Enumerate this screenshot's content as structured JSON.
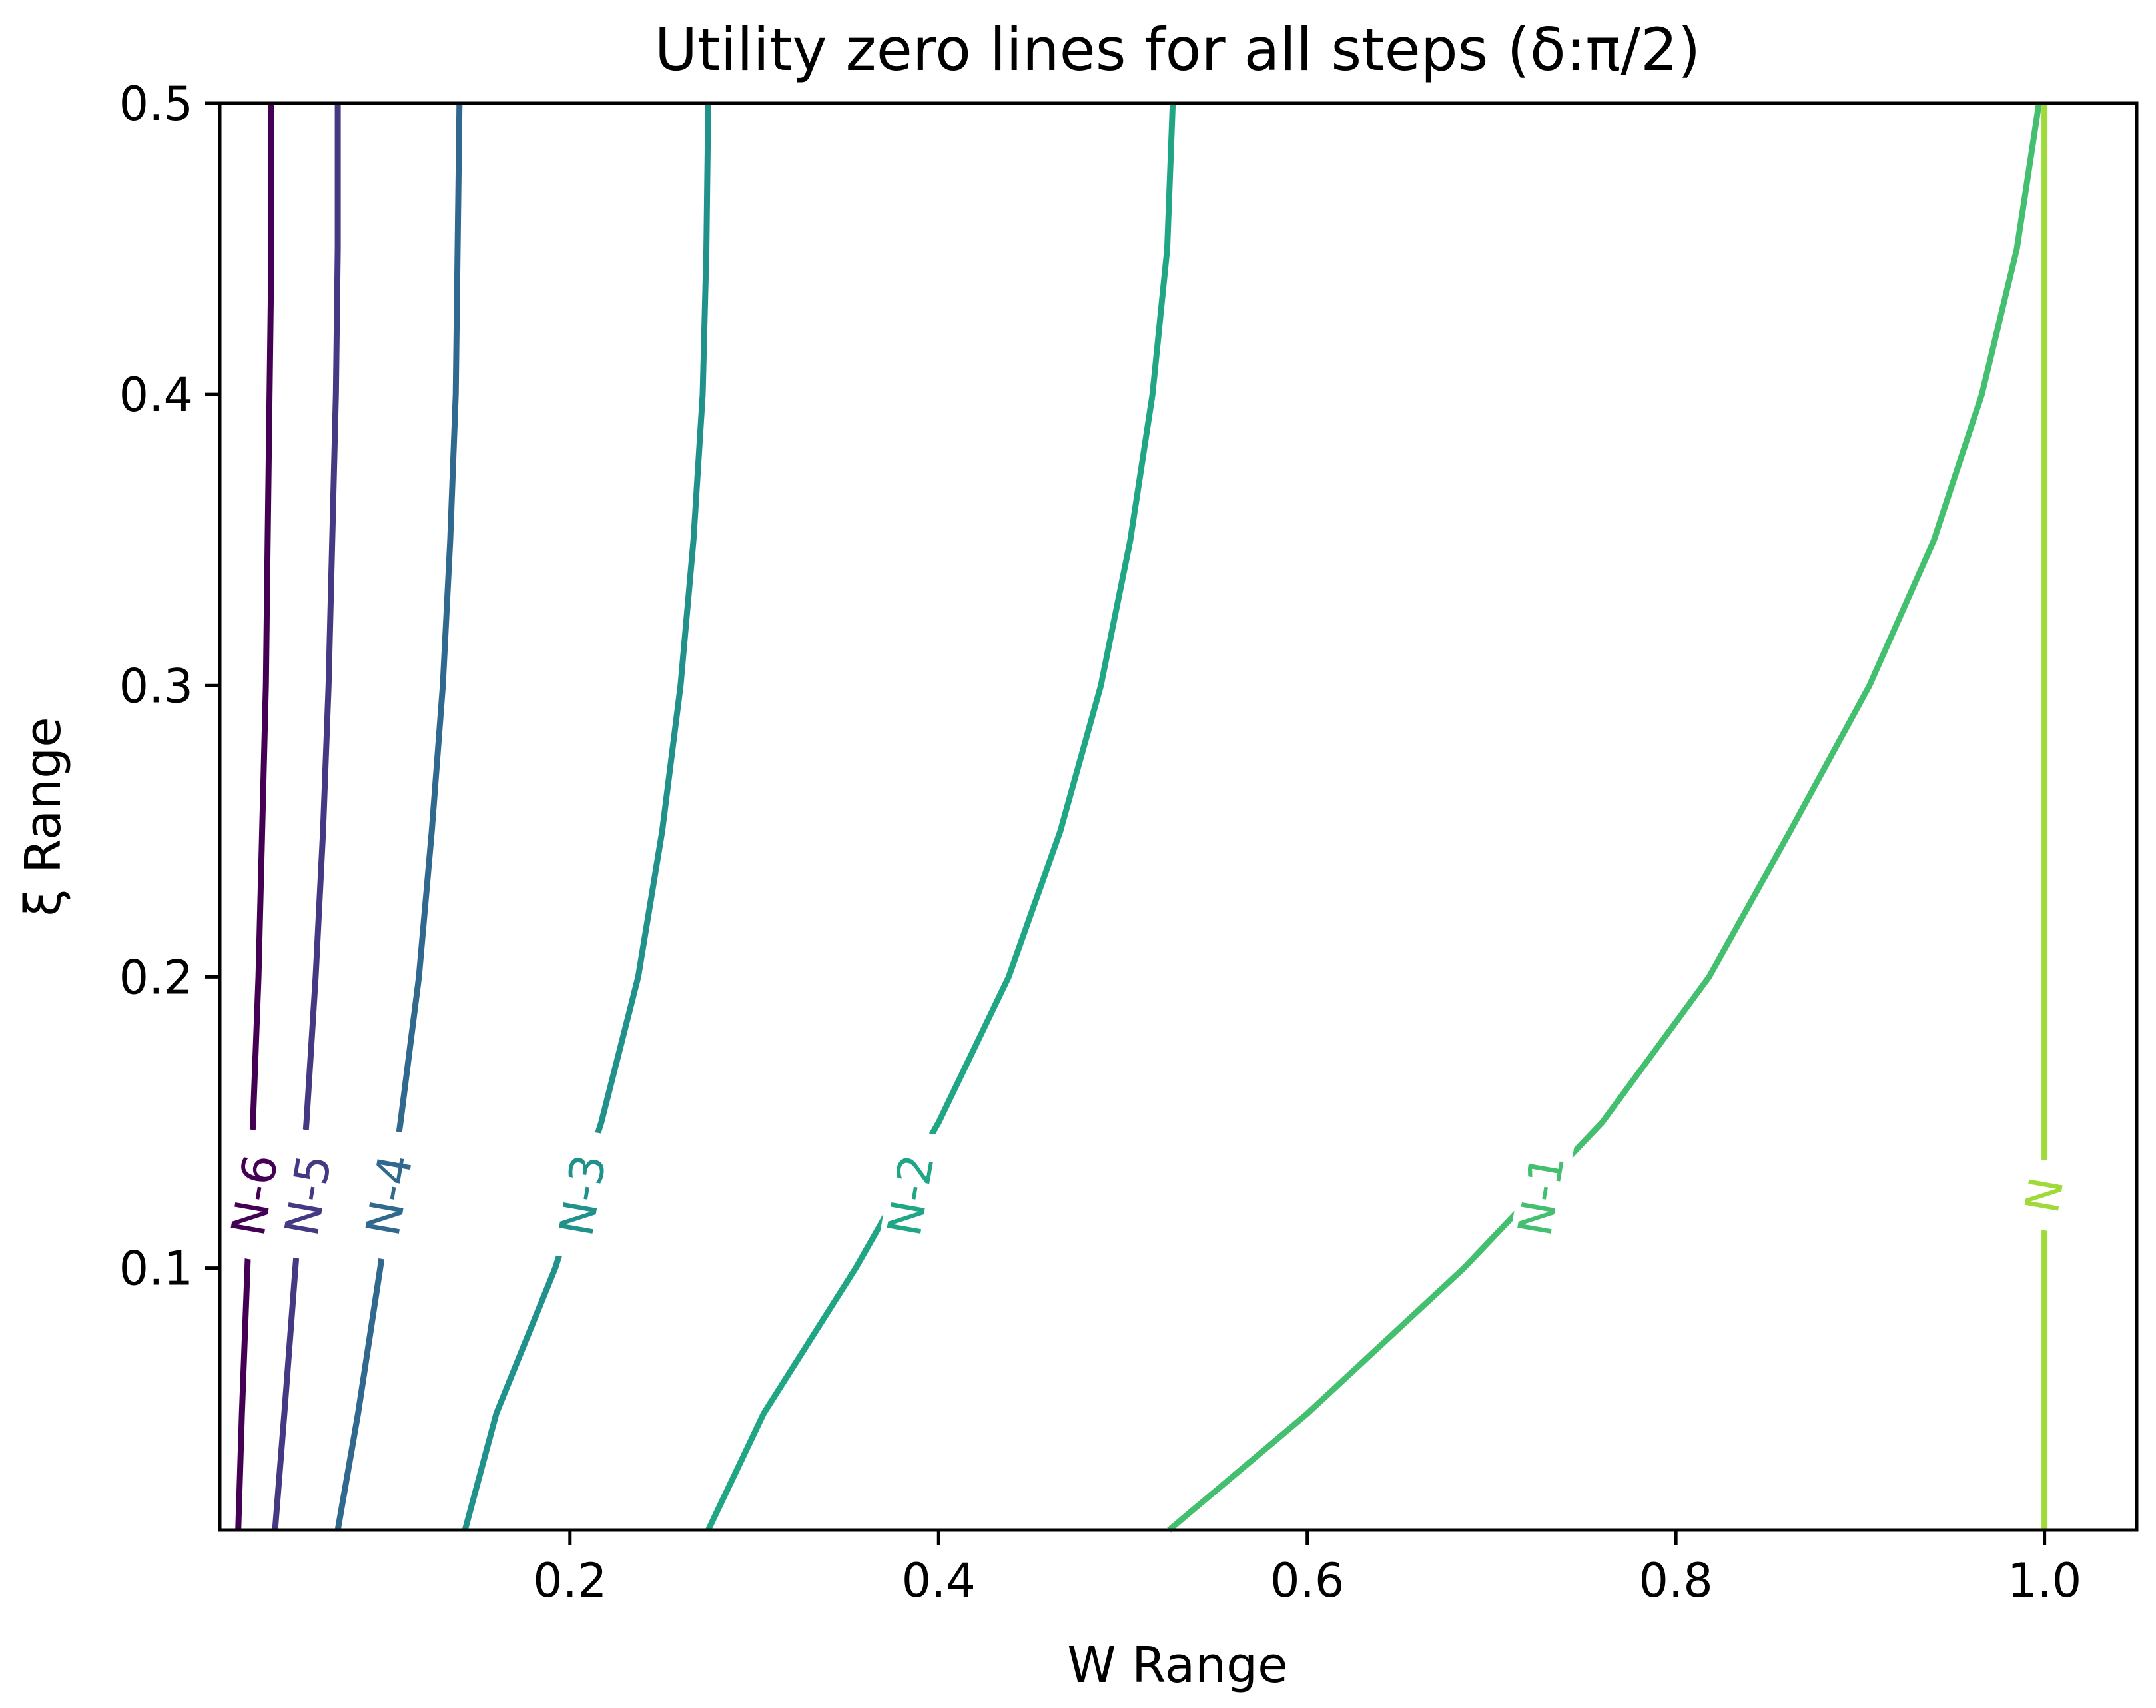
{
  "chart_data": {
    "type": "line",
    "title": "Utility zero lines for all steps (δ:π/2)",
    "xlabel": "W Range",
    "ylabel": "ξ Range",
    "xlim": [
      0.01,
      1.05
    ],
    "ylim": [
      0.01,
      0.5
    ],
    "xticks": [
      {
        "value": 0.2,
        "label": "0.2"
      },
      {
        "value": 0.4,
        "label": "0.4"
      },
      {
        "value": 0.6,
        "label": "0.6"
      },
      {
        "value": 0.8,
        "label": "0.8"
      },
      {
        "value": 1.0,
        "label": "1.0"
      }
    ],
    "yticks": [
      {
        "value": 0.1,
        "label": "0.1"
      },
      {
        "value": 0.2,
        "label": "0.2"
      },
      {
        "value": 0.3,
        "label": "0.3"
      },
      {
        "value": 0.4,
        "label": "0.4"
      },
      {
        "value": 0.5,
        "label": "0.5"
      }
    ],
    "grid": false,
    "legend": "none",
    "series": [
      {
        "name": "N-6",
        "color": "#440154",
        "label_at": [
          0.029,
          0.125
        ],
        "points": [
          [
            0.02,
            0.01
          ],
          [
            0.022,
            0.05
          ],
          [
            0.025,
            0.1
          ],
          [
            0.028,
            0.15
          ],
          [
            0.031,
            0.2
          ],
          [
            0.033,
            0.25
          ],
          [
            0.035,
            0.3
          ],
          [
            0.036,
            0.35
          ],
          [
            0.037,
            0.4
          ],
          [
            0.038,
            0.45
          ],
          [
            0.038,
            0.5
          ]
        ]
      },
      {
        "name": "N-5",
        "color": "#443983",
        "label_at": [
          0.058,
          0.125
        ],
        "points": [
          [
            0.04,
            0.01
          ],
          [
            0.045,
            0.05
          ],
          [
            0.051,
            0.1
          ],
          [
            0.057,
            0.15
          ],
          [
            0.062,
            0.2
          ],
          [
            0.066,
            0.25
          ],
          [
            0.069,
            0.3
          ],
          [
            0.071,
            0.35
          ],
          [
            0.073,
            0.4
          ],
          [
            0.074,
            0.45
          ],
          [
            0.074,
            0.5
          ]
        ]
      },
      {
        "name": "N-4",
        "color": "#31688e",
        "label_at": [
          0.102,
          0.125
        ],
        "points": [
          [
            0.074,
            0.01
          ],
          [
            0.085,
            0.05
          ],
          [
            0.097,
            0.1
          ],
          [
            0.108,
            0.15
          ],
          [
            0.118,
            0.2
          ],
          [
            0.125,
            0.25
          ],
          [
            0.131,
            0.3
          ],
          [
            0.135,
            0.35
          ],
          [
            0.138,
            0.4
          ],
          [
            0.139,
            0.45
          ],
          [
            0.14,
            0.5
          ]
        ]
      },
      {
        "name": "N-3",
        "color": "#21918c",
        "label_at": [
          0.207,
          0.125
        ],
        "points": [
          [
            0.143,
            0.01
          ],
          [
            0.16,
            0.05
          ],
          [
            0.192,
            0.1
          ],
          [
            0.217,
            0.15
          ],
          [
            0.237,
            0.2
          ],
          [
            0.25,
            0.25
          ],
          [
            0.26,
            0.3
          ],
          [
            0.267,
            0.35
          ],
          [
            0.272,
            0.4
          ],
          [
            0.274,
            0.45
          ],
          [
            0.275,
            0.5
          ]
        ]
      },
      {
        "name": "N-2",
        "color": "#21a685",
        "label_at": [
          0.385,
          0.125
        ],
        "points": [
          [
            0.275,
            0.01
          ],
          [
            0.305,
            0.05
          ],
          [
            0.355,
            0.1
          ],
          [
            0.4,
            0.15
          ],
          [
            0.438,
            0.2
          ],
          [
            0.466,
            0.25
          ],
          [
            0.488,
            0.3
          ],
          [
            0.504,
            0.35
          ],
          [
            0.516,
            0.4
          ],
          [
            0.524,
            0.45
          ],
          [
            0.527,
            0.5
          ]
        ]
      },
      {
        "name": "N-1",
        "color": "#44bf70",
        "label_at": [
          0.727,
          0.125
        ],
        "points": [
          [
            0.525,
            0.01
          ],
          [
            0.6,
            0.05
          ],
          [
            0.685,
            0.1
          ],
          [
            0.76,
            0.15
          ],
          [
            0.818,
            0.2
          ],
          [
            0.862,
            0.25
          ],
          [
            0.905,
            0.3
          ],
          [
            0.94,
            0.35
          ],
          [
            0.966,
            0.4
          ],
          [
            0.985,
            0.45
          ],
          [
            0.997,
            0.5
          ]
        ]
      },
      {
        "name": "N",
        "color": "#9fda3a",
        "label_at": [
          1.0,
          0.125
        ],
        "points": [
          [
            1.0,
            0.01
          ],
          [
            1.0,
            0.5
          ]
        ]
      }
    ]
  }
}
